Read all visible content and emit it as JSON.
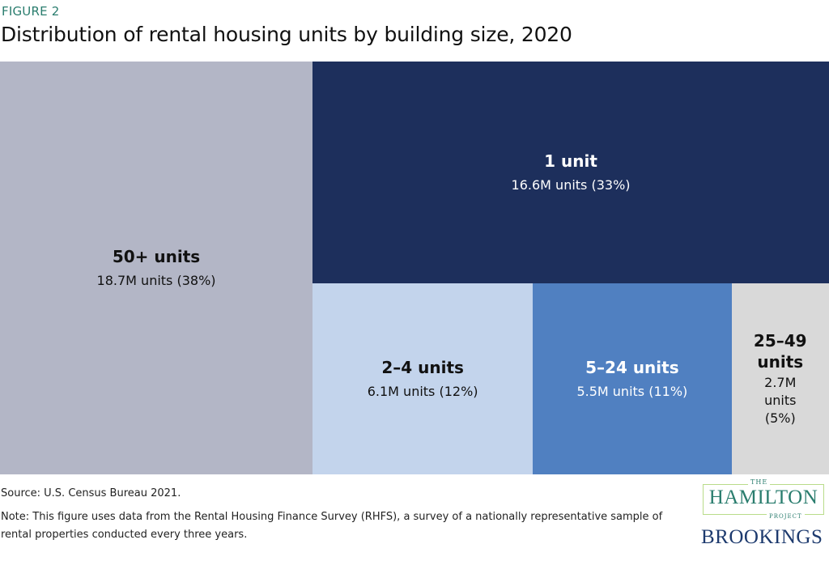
{
  "figure_label": "FIGURE 2",
  "title": "Distribution of rental housing units by building size, 2020",
  "chart_data": {
    "type": "treemap",
    "title": "Distribution of rental housing units by building size, 2020",
    "unit": "million units",
    "items": [
      {
        "name": "50+ units",
        "value": 18.7,
        "percent": 38,
        "value_label": "18.7M units (38%)",
        "color": "#b3b6c6",
        "text_color": "#111111"
      },
      {
        "name": "1 unit",
        "value": 16.6,
        "percent": 33,
        "value_label": "16.6M units (33%)",
        "color": "#1d2f5c",
        "text_color": "#ffffff"
      },
      {
        "name": "2–4 units",
        "value": 6.1,
        "percent": 12,
        "value_label": "6.1M units (12%)",
        "color": "#c3d4ec",
        "text_color": "#111111"
      },
      {
        "name": "5–24 units",
        "value": 5.5,
        "percent": 11,
        "value_label": "5.5M units (11%)",
        "color": "#5080c1",
        "text_color": "#ffffff"
      },
      {
        "name": "25–49 units",
        "value": 2.7,
        "percent": 5,
        "value_label": "2.7M units (5%)",
        "color": "#d9d9d9",
        "text_color": "#111111"
      }
    ]
  },
  "source": "Source: U.S. Census Bureau 2021.",
  "note": "Note: This figure uses data from the Rental Housing Finance Survey (RHFS), a survey of a nationally representa­tive sample of rental properties conducted every three years.",
  "logos": {
    "hamilton_the": "THE",
    "hamilton": "HAMILTON",
    "hamilton_project": "PROJECT",
    "brookings": "BROOKINGS"
  }
}
